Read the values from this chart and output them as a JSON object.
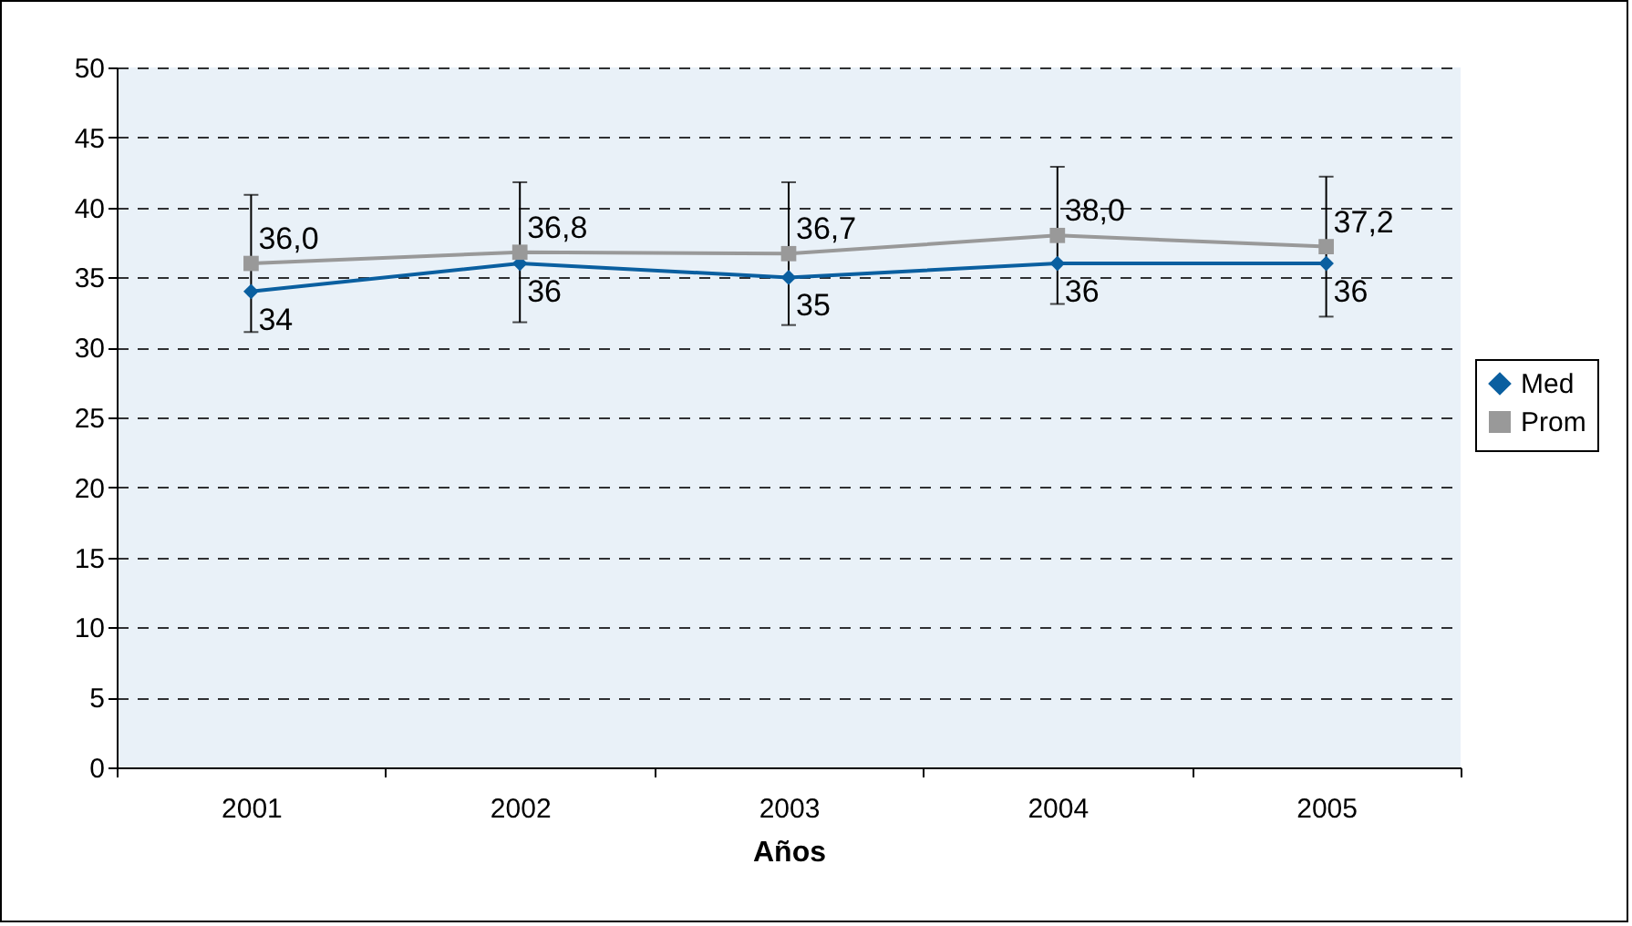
{
  "chart_data": {
    "type": "line",
    "xlabel": "Años",
    "categories": [
      "2001",
      "2002",
      "2003",
      "2004",
      "2005"
    ],
    "series": [
      {
        "name": "Med",
        "color": "#0a5fa0",
        "marker": "diamond",
        "values": [
          34,
          36,
          35,
          36,
          36
        ],
        "value_labels": [
          "34",
          "36",
          "35",
          "36",
          "36"
        ]
      },
      {
        "name": "Prom",
        "color": "#999999",
        "marker": "square",
        "values": [
          36.0,
          36.8,
          36.7,
          38.0,
          37.2
        ],
        "value_labels": [
          "36,0",
          "36,8",
          "36,7",
          "38,0",
          "37,2"
        ],
        "errors": [
          4.9,
          5.0,
          5.1,
          4.9,
          5.0
        ]
      }
    ],
    "ylim": [
      0,
      50
    ],
    "yticks": [
      0,
      5,
      10,
      15,
      20,
      25,
      30,
      35,
      40,
      45,
      50
    ],
    "grid": "y",
    "legend": "right",
    "line_style": "solid"
  }
}
